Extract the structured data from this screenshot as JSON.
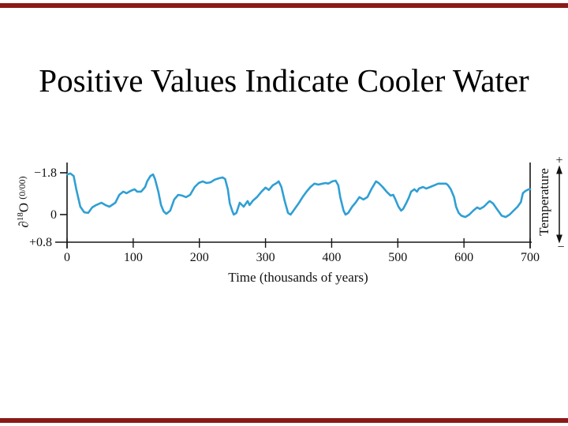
{
  "slide": {
    "title": "Positive Values Indicate Cooler Water"
  },
  "colors": {
    "curve": "#2f9fd4",
    "axis": "#161616",
    "border_bar": "#8b1a17",
    "background": "#ffffff",
    "text": "#111111"
  },
  "chart_data": {
    "type": "line",
    "title": "",
    "xlabel": "Time (thousands of years)",
    "ylabel_parts": {
      "partial": "∂",
      "isotope": "18",
      "element": "O",
      "unit": "(0/00)"
    },
    "right_axis_label": "Temperature",
    "right_axis_plus": "+",
    "right_axis_minus": "−",
    "x_ticks": [
      0,
      100,
      200,
      300,
      400,
      500,
      600,
      700
    ],
    "x_tick_labels": [
      "0",
      "100",
      "200",
      "300",
      "400",
      "500",
      "600",
      "700"
    ],
    "y_tick_labels": [
      "−1.8",
      "0",
      "+0.8"
    ],
    "xlim": [
      0,
      700
    ],
    "ylim": [
      -1.8,
      0.8
    ],
    "y_inverted": true,
    "grid": false,
    "legend": "none",
    "series": [
      {
        "name": "delta-18O (0/00)",
        "x": [
          0,
          5,
          10,
          14,
          20,
          26,
          32,
          38,
          44,
          52,
          58,
          64,
          73,
          79,
          85,
          90,
          96,
          102,
          106,
          112,
          118,
          121,
          126,
          130,
          133,
          138,
          142,
          146,
          150,
          156,
          162,
          168,
          174,
          180,
          186,
          193,
          199,
          205,
          211,
          217,
          223,
          229,
          235,
          239,
          243,
          246,
          250,
          252,
          256,
          261,
          267,
          273,
          276,
          281,
          287,
          294,
          300,
          305,
          311,
          317,
          320,
          324,
          329,
          334,
          338,
          344,
          350,
          356,
          362,
          368,
          374,
          380,
          386,
          391,
          395,
          401,
          406,
          410,
          413,
          418,
          421,
          425,
          431,
          436,
          442,
          448,
          454,
          460,
          465,
          467,
          471,
          477,
          483,
          489,
          493,
          496,
          501,
          505,
          508,
          513,
          517,
          520,
          525,
          529,
          532,
          538,
          543,
          549,
          555,
          561,
          567,
          573,
          576,
          580,
          585,
          588,
          592,
          596,
          602,
          608,
          614,
          620,
          624,
          630,
          636,
          639,
          644,
          648,
          654,
          657,
          663,
          669,
          675,
          681,
          686,
          689,
          693,
          698,
          700
        ],
        "y": [
          -1.73,
          -1.77,
          -1.66,
          -1.09,
          -0.34,
          -0.1,
          -0.07,
          -0.31,
          -0.41,
          -0.51,
          -0.41,
          -0.34,
          -0.51,
          -0.85,
          -0.99,
          -0.92,
          -1.02,
          -1.09,
          -0.99,
          -0.99,
          -1.19,
          -1.43,
          -1.66,
          -1.73,
          -1.53,
          -0.99,
          -0.41,
          -0.14,
          -0.03,
          -0.17,
          -0.65,
          -0.85,
          -0.82,
          -0.75,
          -0.85,
          -1.19,
          -1.36,
          -1.43,
          -1.36,
          -1.39,
          -1.5,
          -1.56,
          -1.6,
          -1.53,
          -1.09,
          -0.48,
          -0.14,
          0.0,
          -0.07,
          -0.51,
          -0.34,
          -0.58,
          -0.41,
          -0.6,
          -0.75,
          -0.99,
          -1.16,
          -1.06,
          -1.26,
          -1.36,
          -1.43,
          -1.19,
          -0.58,
          -0.07,
          0.0,
          -0.24,
          -0.48,
          -0.75,
          -0.99,
          -1.19,
          -1.33,
          -1.29,
          -1.33,
          -1.36,
          -1.33,
          -1.43,
          -1.46,
          -1.26,
          -0.75,
          -0.17,
          0.0,
          -0.07,
          -0.34,
          -0.51,
          -0.75,
          -0.65,
          -0.75,
          -1.09,
          -1.33,
          -1.43,
          -1.36,
          -1.19,
          -0.99,
          -0.82,
          -0.85,
          -0.68,
          -0.34,
          -0.17,
          -0.24,
          -0.51,
          -0.75,
          -0.99,
          -1.09,
          -0.99,
          -1.12,
          -1.19,
          -1.12,
          -1.19,
          -1.26,
          -1.33,
          -1.33,
          -1.33,
          -1.26,
          -1.09,
          -0.75,
          -0.34,
          -0.07,
          0.03,
          0.07,
          0.0,
          -0.17,
          -0.31,
          -0.24,
          -0.34,
          -0.51,
          -0.58,
          -0.48,
          -0.31,
          -0.07,
          0.03,
          0.07,
          0.0,
          -0.17,
          -0.34,
          -0.54,
          -0.92,
          -1.02,
          -1.09,
          -1.09
        ]
      }
    ]
  }
}
